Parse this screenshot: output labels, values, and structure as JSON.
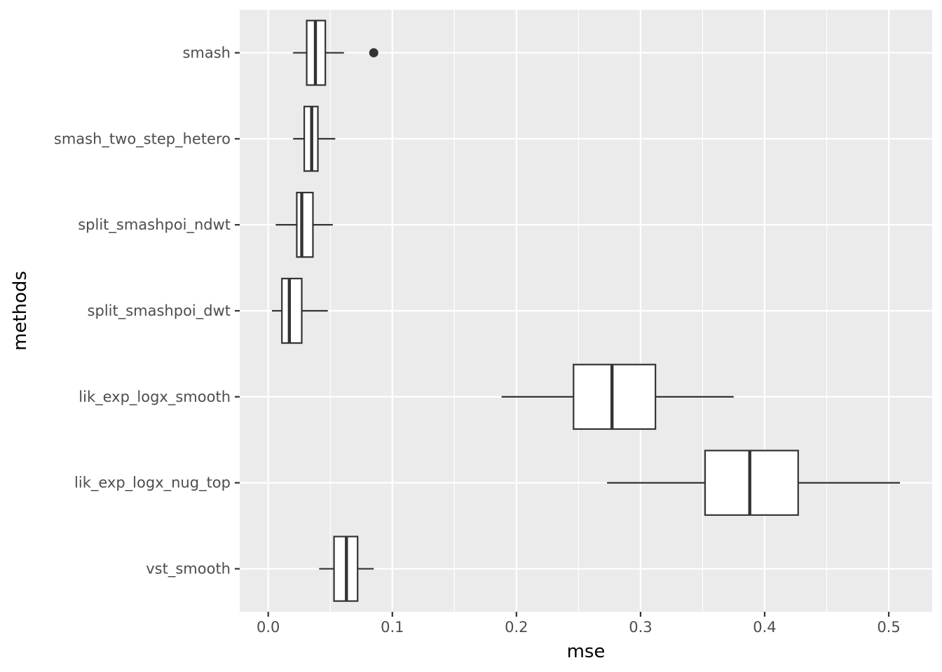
{
  "chart_data": {
    "type": "boxplot",
    "orientation": "horizontal",
    "xlabel": "mse",
    "ylabel": "methods",
    "xlim": [
      -0.023,
      0.535
    ],
    "x_ticks": [
      0.0,
      0.1,
      0.2,
      0.3,
      0.4,
      0.5
    ],
    "x_tick_labels": [
      "0.0",
      "0.1",
      "0.2",
      "0.3",
      "0.4",
      "0.5"
    ],
    "x_minor_ticks": [
      0.05,
      0.15,
      0.25,
      0.35,
      0.45
    ],
    "grid": true,
    "colors": {
      "panel_background": "#ebebeb",
      "grid": "#ffffff",
      "box_fill": "#ffffff",
      "box_stroke": "#333333",
      "tick_text": "#4d4d4d"
    },
    "categories": [
      "smash",
      "smash_two_step_hetero",
      "split_smashpoi_ndwt",
      "split_smashpoi_dwt",
      "lik_exp_logx_smooth",
      "lik_exp_logx_nug_top",
      "vst_smooth"
    ],
    "boxes": [
      {
        "category": "smash",
        "whisker_low": 0.02,
        "q1": 0.031,
        "median": 0.038,
        "q3": 0.046,
        "whisker_high": 0.061,
        "outliers": [
          0.085
        ]
      },
      {
        "category": "smash_two_step_hetero",
        "whisker_low": 0.02,
        "q1": 0.029,
        "median": 0.035,
        "q3": 0.04,
        "whisker_high": 0.054,
        "outliers": []
      },
      {
        "category": "split_smashpoi_ndwt",
        "whisker_low": 0.006,
        "q1": 0.023,
        "median": 0.027,
        "q3": 0.036,
        "whisker_high": 0.052,
        "outliers": []
      },
      {
        "category": "split_smashpoi_dwt",
        "whisker_low": 0.003,
        "q1": 0.011,
        "median": 0.017,
        "q3": 0.027,
        "whisker_high": 0.048,
        "outliers": []
      },
      {
        "category": "lik_exp_logx_smooth",
        "whisker_low": 0.188,
        "q1": 0.246,
        "median": 0.277,
        "q3": 0.312,
        "whisker_high": 0.375,
        "outliers": []
      },
      {
        "category": "lik_exp_logx_nug_top",
        "whisker_low": 0.273,
        "q1": 0.352,
        "median": 0.388,
        "q3": 0.427,
        "whisker_high": 0.509,
        "outliers": []
      },
      {
        "category": "vst_smooth",
        "whisker_low": 0.041,
        "q1": 0.053,
        "median": 0.063,
        "q3": 0.072,
        "whisker_high": 0.085,
        "outliers": []
      }
    ]
  }
}
